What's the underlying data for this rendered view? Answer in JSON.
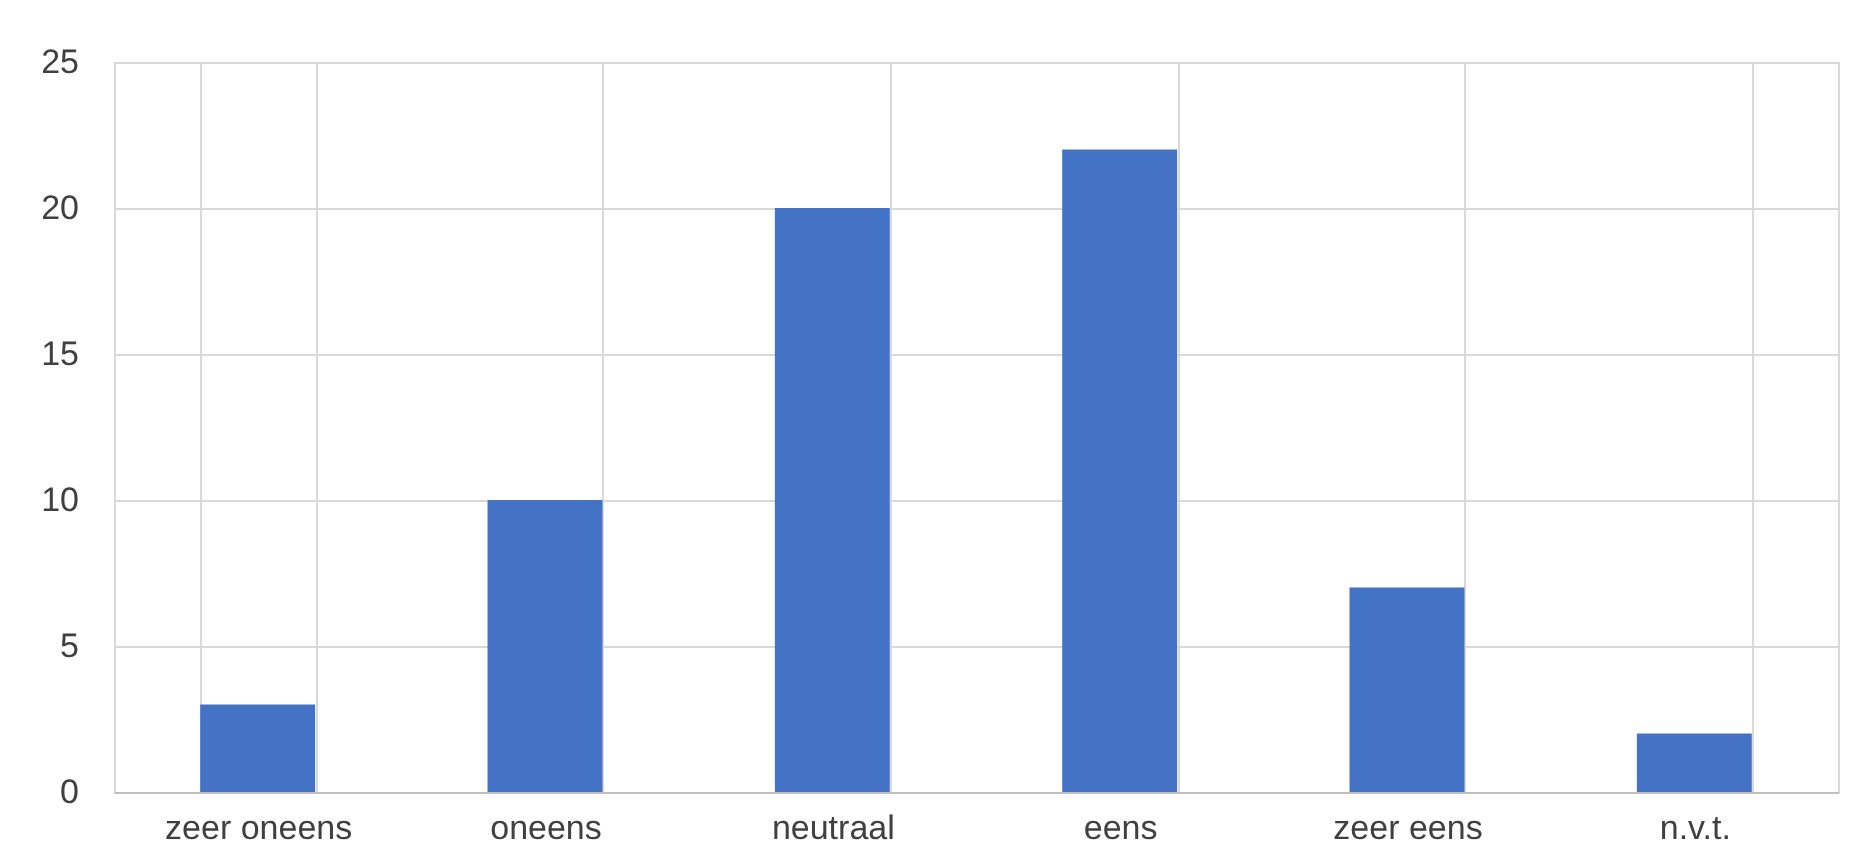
{
  "chart_data": {
    "type": "bar",
    "categories": [
      "zeer oneens",
      "oneens",
      "neutraal",
      "eens",
      "zeer eens",
      "n.v.t."
    ],
    "values": [
      3,
      10,
      20,
      22,
      7,
      2
    ],
    "color": "#4472c4",
    "ylim": [
      0,
      25
    ],
    "yticks": [
      0,
      5,
      10,
      15,
      20,
      25
    ],
    "grid": true
  }
}
